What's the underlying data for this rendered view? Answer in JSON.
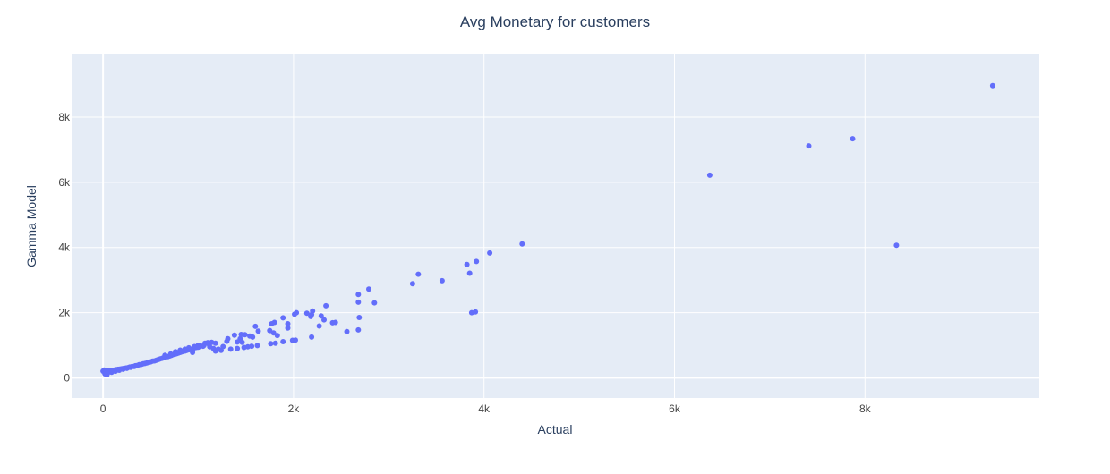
{
  "colors": {
    "plot_bg": "#e5ecf6",
    "grid": "#ffffff",
    "marker": "#636efa",
    "text": "#2a3f5f",
    "tick_text": "#444444"
  },
  "chart_data": {
    "type": "scatter",
    "title": "Avg Monetary for customers",
    "xlabel": "Actual",
    "ylabel": "Gamma Model",
    "xlim": [
      -330,
      9830
    ],
    "ylim": [
      -620,
      9950
    ],
    "grid": true,
    "legend": "none",
    "x_ticks": [
      {
        "value": 0,
        "label": "0"
      },
      {
        "value": 2000,
        "label": "2k"
      },
      {
        "value": 4000,
        "label": "4k"
      },
      {
        "value": 6000,
        "label": "6k"
      },
      {
        "value": 8000,
        "label": "8k"
      }
    ],
    "y_ticks": [
      {
        "value": 0,
        "label": "0"
      },
      {
        "value": 2000,
        "label": "2k"
      },
      {
        "value": 4000,
        "label": "4k"
      },
      {
        "value": 6000,
        "label": "6k"
      },
      {
        "value": 8000,
        "label": "8k"
      }
    ],
    "series": [
      {
        "values": [
          [
            9340,
            8970
          ],
          [
            7870,
            7340
          ],
          [
            7410,
            7120
          ],
          [
            6370,
            6220
          ],
          [
            8330,
            4070
          ],
          [
            4400,
            4110
          ],
          [
            4060,
            3830
          ],
          [
            3920,
            3570
          ],
          [
            3820,
            3480
          ],
          [
            3850,
            3210
          ],
          [
            3310,
            3180
          ],
          [
            3560,
            2980
          ],
          [
            3250,
            2890
          ],
          [
            3870,
            2000
          ],
          [
            3910,
            2020
          ],
          [
            2790,
            2720
          ],
          [
            2680,
            2560
          ],
          [
            2680,
            2320
          ],
          [
            2850,
            2300
          ],
          [
            2340,
            2210
          ],
          [
            2200,
            2050
          ],
          [
            2140,
            1980
          ],
          [
            2190,
            1940
          ],
          [
            2030,
            2000
          ],
          [
            2010,
            1950
          ],
          [
            2290,
            1900
          ],
          [
            2180,
            1880
          ],
          [
            2320,
            1780
          ],
          [
            2270,
            1590
          ],
          [
            2440,
            1700
          ],
          [
            2410,
            1690
          ],
          [
            2690,
            1850
          ],
          [
            1890,
            1840
          ],
          [
            1940,
            1660
          ],
          [
            1940,
            1530
          ],
          [
            1800,
            1700
          ],
          [
            1770,
            1660
          ],
          [
            1600,
            1580
          ],
          [
            1630,
            1430
          ],
          [
            1750,
            1450
          ],
          [
            1790,
            1380
          ],
          [
            1830,
            1300
          ],
          [
            2190,
            1250
          ],
          [
            2560,
            1420
          ],
          [
            2680,
            1470
          ],
          [
            1450,
            1330
          ],
          [
            1380,
            1310
          ],
          [
            1490,
            1320
          ],
          [
            1540,
            1280
          ],
          [
            1570,
            1250
          ],
          [
            1440,
            1200
          ],
          [
            1310,
            1200
          ],
          [
            1300,
            1120
          ],
          [
            1460,
            1090
          ],
          [
            1410,
            1100
          ],
          [
            1890,
            1110
          ],
          [
            1990,
            1150
          ],
          [
            2020,
            1160
          ],
          [
            1760,
            1050
          ],
          [
            1810,
            1060
          ],
          [
            1620,
            990
          ],
          [
            1560,
            970
          ],
          [
            1520,
            950
          ],
          [
            1480,
            930
          ],
          [
            1410,
            900
          ],
          [
            1340,
            880
          ],
          [
            1240,
            840
          ],
          [
            1210,
            880
          ],
          [
            1180,
            1060
          ],
          [
            1140,
            1090
          ],
          [
            1100,
            1080
          ],
          [
            1070,
            1060
          ],
          [
            1050,
            970
          ],
          [
            1020,
            980
          ],
          [
            980,
            930
          ],
          [
            1000,
            1000
          ],
          [
            1120,
            950
          ],
          [
            1160,
            900
          ],
          [
            1180,
            820
          ],
          [
            1260,
            960
          ],
          [
            950,
            900
          ],
          [
            920,
            880
          ],
          [
            900,
            860
          ],
          [
            880,
            840
          ],
          [
            860,
            820
          ],
          [
            940,
            780
          ],
          [
            830,
            800
          ],
          [
            810,
            780
          ],
          [
            790,
            760
          ],
          [
            770,
            740
          ],
          [
            750,
            720
          ],
          [
            720,
            690
          ],
          [
            700,
            670
          ],
          [
            680,
            650
          ],
          [
            660,
            640
          ],
          [
            640,
            620
          ],
          [
            620,
            600
          ],
          [
            600,
            580
          ],
          [
            580,
            560
          ],
          [
            560,
            540
          ],
          [
            540,
            520
          ],
          [
            520,
            510
          ],
          [
            500,
            490
          ],
          [
            480,
            470
          ],
          [
            460,
            460
          ],
          [
            440,
            440
          ],
          [
            420,
            430
          ],
          [
            400,
            410
          ],
          [
            380,
            400
          ],
          [
            360,
            380
          ],
          [
            340,
            370
          ],
          [
            320,
            350
          ],
          [
            300,
            340
          ],
          [
            280,
            330
          ],
          [
            260,
            310
          ],
          [
            240,
            300
          ],
          [
            220,
            290
          ],
          [
            200,
            280
          ],
          [
            180,
            270
          ],
          [
            160,
            260
          ],
          [
            140,
            250
          ],
          [
            120,
            240
          ],
          [
            100,
            230
          ],
          [
            80,
            225
          ],
          [
            60,
            220
          ],
          [
            40,
            215
          ],
          [
            20,
            210
          ],
          [
            0,
            205
          ],
          [
            10,
            240
          ],
          [
            30,
            180
          ],
          [
            20,
            120
          ],
          [
            40,
            90
          ],
          [
            50,
            150
          ],
          [
            90,
            170
          ],
          [
            130,
            200
          ],
          [
            170,
            230
          ],
          [
            210,
            260
          ],
          [
            250,
            290
          ],
          [
            290,
            320
          ],
          [
            330,
            350
          ],
          [
            650,
            690
          ],
          [
            710,
            730
          ],
          [
            760,
            800
          ],
          [
            810,
            850
          ],
          [
            860,
            880
          ],
          [
            900,
            920
          ],
          [
            960,
            960
          ],
          [
            1000,
            940
          ],
          [
            1060,
            1000
          ],
          [
            1110,
            1040
          ]
        ]
      }
    ]
  }
}
